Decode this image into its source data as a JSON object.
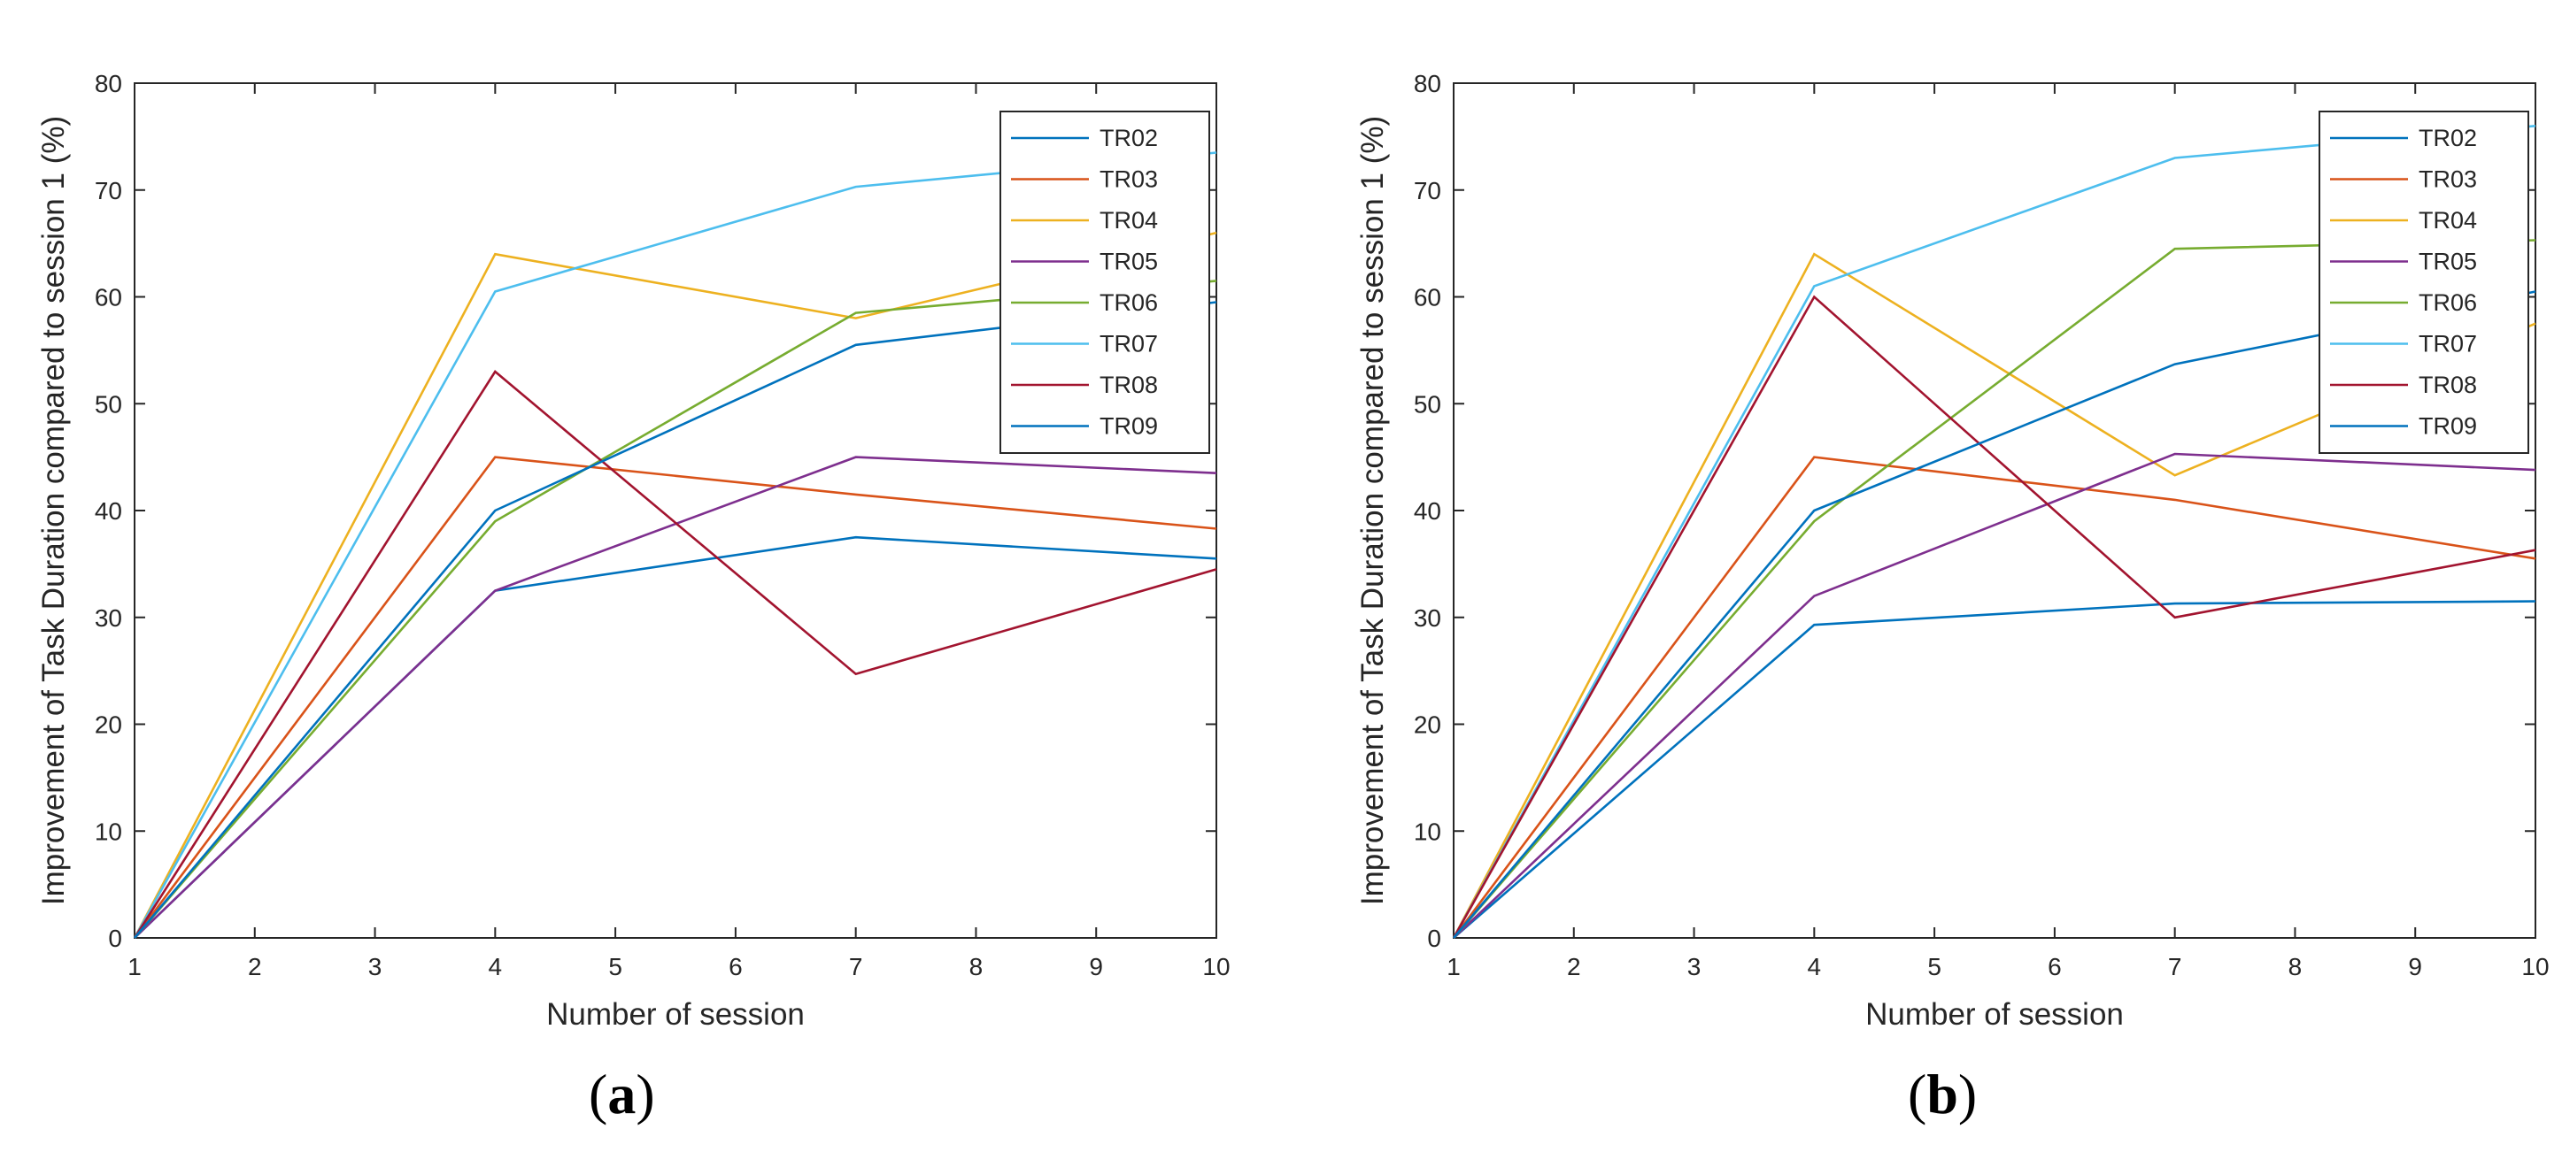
{
  "figure": {
    "panel_labels_bold": [
      "a",
      "b"
    ]
  },
  "chart_data": [
    {
      "type": "line",
      "panel": "(a)",
      "panel_letter": "a",
      "xlabel": "Number of session",
      "ylabel": "Improvement of Task Duration compared to session 1 (%)",
      "xlim": [
        1,
        10
      ],
      "ylim": [
        0,
        80
      ],
      "xticks": [
        1,
        2,
        3,
        4,
        5,
        6,
        7,
        8,
        9,
        10
      ],
      "yticks": [
        0,
        10,
        20,
        30,
        40,
        50,
        60,
        70,
        80
      ],
      "grid": false,
      "legend_position": "top-right",
      "x": [
        1,
        4,
        7,
        10
      ],
      "series": [
        {
          "name": "TR02",
          "color": "#0072BD",
          "values": [
            0,
            32.5,
            37.5,
            35.5
          ]
        },
        {
          "name": "TR03",
          "color": "#D95319",
          "values": [
            0,
            45,
            41.5,
            38.3
          ]
        },
        {
          "name": "TR04",
          "color": "#EDB120",
          "values": [
            0,
            64,
            58,
            66
          ]
        },
        {
          "name": "TR05",
          "color": "#7E2F8E",
          "values": [
            0,
            32.5,
            45,
            43.5
          ]
        },
        {
          "name": "TR06",
          "color": "#77AC30",
          "values": [
            0,
            39,
            58.5,
            61.5
          ]
        },
        {
          "name": "TR07",
          "color": "#4DBEEE",
          "values": [
            0,
            60.5,
            70.3,
            73.5
          ]
        },
        {
          "name": "TR08",
          "color": "#A2142F",
          "values": [
            0,
            53,
            24.7,
            34.5
          ]
        },
        {
          "name": "TR09",
          "color": "#0072BD",
          "values": [
            0,
            40,
            55.5,
            59.5
          ]
        }
      ]
    },
    {
      "type": "line",
      "panel": "(b)",
      "panel_letter": "b",
      "xlabel": "Number of session",
      "ylabel": "Improvement of Task Duration compared to session 1 (%)",
      "xlim": [
        1,
        10
      ],
      "ylim": [
        0,
        80
      ],
      "xticks": [
        1,
        2,
        3,
        4,
        5,
        6,
        7,
        8,
        9,
        10
      ],
      "yticks": [
        0,
        10,
        20,
        30,
        40,
        50,
        60,
        70,
        80
      ],
      "grid": false,
      "legend_position": "top-right",
      "x": [
        1,
        4,
        7,
        10
      ],
      "series": [
        {
          "name": "TR02",
          "color": "#0072BD",
          "values": [
            0,
            29.3,
            31.3,
            31.5
          ]
        },
        {
          "name": "TR03",
          "color": "#D95319",
          "values": [
            0,
            45,
            41,
            35.5
          ]
        },
        {
          "name": "TR04",
          "color": "#EDB120",
          "values": [
            0,
            64,
            43.3,
            57.5
          ]
        },
        {
          "name": "TR05",
          "color": "#7E2F8E",
          "values": [
            0,
            32,
            45.3,
            43.8
          ]
        },
        {
          "name": "TR06",
          "color": "#77AC30",
          "values": [
            0,
            39,
            64.5,
            65.3
          ]
        },
        {
          "name": "TR07",
          "color": "#4DBEEE",
          "values": [
            0,
            61,
            73,
            76
          ]
        },
        {
          "name": "TR08",
          "color": "#A2142F",
          "values": [
            0,
            60,
            30,
            36.3
          ]
        },
        {
          "name": "TR09",
          "color": "#0072BD",
          "values": [
            0,
            40,
            53.7,
            60.5
          ]
        }
      ]
    }
  ]
}
